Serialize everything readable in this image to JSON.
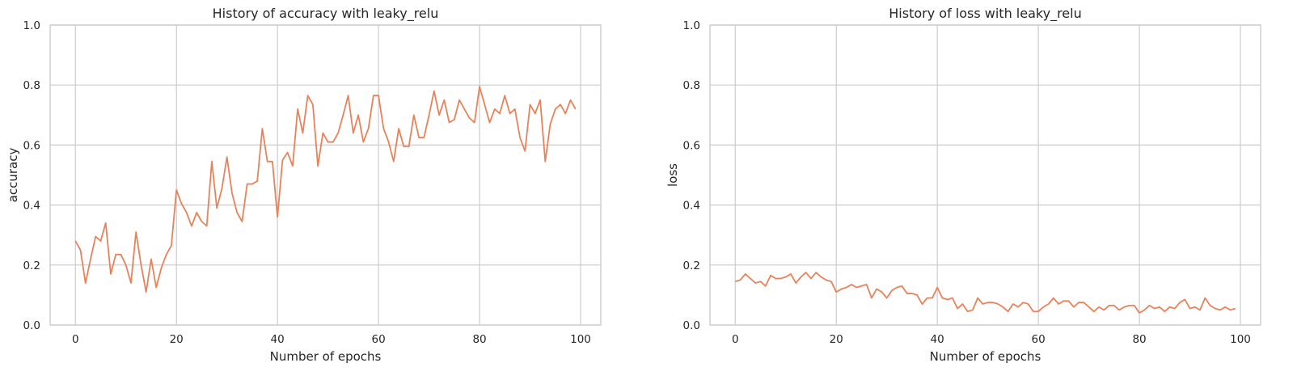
{
  "chart_data": [
    {
      "type": "line",
      "title": "History of accuracy with leaky_relu",
      "xlabel": "Number of epochs",
      "ylabel": "accuracy",
      "xlim": [
        -5,
        104
      ],
      "ylim": [
        0,
        1
      ],
      "xticks": [
        0,
        20,
        40,
        60,
        80,
        100
      ],
      "yticks": [
        0.0,
        0.2,
        0.4,
        0.6,
        0.8,
        1.0
      ],
      "xtick_labels": [
        "0",
        "20",
        "40",
        "60",
        "80",
        "100"
      ],
      "ytick_labels": [
        "0.0",
        "0.2",
        "0.4",
        "0.6",
        "0.8",
        "1.0"
      ],
      "grid": true,
      "line_color": "#e8825a",
      "series": [
        {
          "values": [
            0.28,
            0.25,
            0.14,
            0.22,
            0.295,
            0.28,
            0.34,
            0.17,
            0.235,
            0.235,
            0.2,
            0.14,
            0.31,
            0.2,
            0.11,
            0.22,
            0.125,
            0.19,
            0.235,
            0.265,
            0.45,
            0.405,
            0.375,
            0.33,
            0.375,
            0.345,
            0.33,
            0.545,
            0.39,
            0.455,
            0.56,
            0.44,
            0.375,
            0.345,
            0.47,
            0.47,
            0.48,
            0.655,
            0.545,
            0.545,
            0.36,
            0.55,
            0.575,
            0.53,
            0.72,
            0.64,
            0.765,
            0.735,
            0.53,
            0.64,
            0.61,
            0.61,
            0.64,
            0.7,
            0.765,
            0.64,
            0.7,
            0.61,
            0.655,
            0.765,
            0.765,
            0.655,
            0.61,
            0.545,
            0.655,
            0.595,
            0.595,
            0.7,
            0.625,
            0.625,
            0.7,
            0.78,
            0.7,
            0.75,
            0.675,
            0.685,
            0.75,
            0.72,
            0.69,
            0.675,
            0.795,
            0.735,
            0.675,
            0.72,
            0.705,
            0.765,
            0.705,
            0.72,
            0.625,
            0.58,
            0.735,
            0.705,
            0.75,
            0.545,
            0.67,
            0.72,
            0.735,
            0.705,
            0.75,
            0.72
          ]
        }
      ]
    },
    {
      "type": "line",
      "title": "History of loss with leaky_relu",
      "xlabel": "Number of epochs",
      "ylabel": "loss",
      "xlim": [
        -5,
        104
      ],
      "ylim": [
        0,
        1
      ],
      "xticks": [
        0,
        20,
        40,
        60,
        80,
        100
      ],
      "yticks": [
        0.0,
        0.2,
        0.4,
        0.6,
        0.8,
        1.0
      ],
      "xtick_labels": [
        "0",
        "20",
        "40",
        "60",
        "80",
        "100"
      ],
      "ytick_labels": [
        "0.0",
        "0.2",
        "0.4",
        "0.6",
        "0.8",
        "1.0"
      ],
      "grid": true,
      "line_color": "#e8825a",
      "series": [
        {
          "values": [
            0.145,
            0.15,
            0.17,
            0.155,
            0.14,
            0.145,
            0.13,
            0.165,
            0.155,
            0.155,
            0.16,
            0.17,
            0.14,
            0.16,
            0.175,
            0.155,
            0.175,
            0.16,
            0.15,
            0.145,
            0.11,
            0.12,
            0.125,
            0.135,
            0.125,
            0.13,
            0.135,
            0.09,
            0.12,
            0.11,
            0.09,
            0.115,
            0.125,
            0.13,
            0.105,
            0.105,
            0.1,
            0.07,
            0.09,
            0.09,
            0.125,
            0.09,
            0.085,
            0.09,
            0.055,
            0.07,
            0.045,
            0.05,
            0.09,
            0.07,
            0.075,
            0.075,
            0.07,
            0.06,
            0.045,
            0.07,
            0.06,
            0.075,
            0.07,
            0.045,
            0.045,
            0.06,
            0.07,
            0.09,
            0.07,
            0.08,
            0.08,
            0.06,
            0.075,
            0.075,
            0.06,
            0.045,
            0.06,
            0.05,
            0.065,
            0.065,
            0.05,
            0.06,
            0.065,
            0.065,
            0.04,
            0.05,
            0.065,
            0.055,
            0.06,
            0.045,
            0.06,
            0.055,
            0.075,
            0.085,
            0.055,
            0.06,
            0.05,
            0.09,
            0.065,
            0.055,
            0.05,
            0.06,
            0.05,
            0.055
          ]
        }
      ]
    }
  ]
}
